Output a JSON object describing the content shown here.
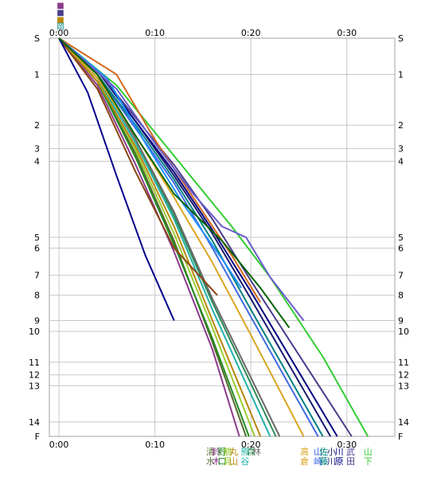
{
  "chart_data": {
    "type": "line",
    "title": "",
    "xlabel": "",
    "ylabel": "",
    "x_ticks": [
      {
        "value": 0,
        "label": "0:00"
      },
      {
        "value": 10,
        "label": "0:10"
      },
      {
        "value": 20,
        "label": "0:20"
      },
      {
        "value": 30,
        "label": "0:30"
      }
    ],
    "xlim": [
      -1,
      35
    ],
    "y_ticks": [
      {
        "value": 0,
        "label": "S"
      },
      {
        "value": 1,
        "label": "1"
      },
      {
        "value": 2,
        "label": "2"
      },
      {
        "value": 3,
        "label": "3"
      },
      {
        "value": 4,
        "label": "4"
      },
      {
        "value": 5,
        "label": "5"
      },
      {
        "value": 6,
        "label": "6"
      },
      {
        "value": 7,
        "label": "7"
      },
      {
        "value": 8,
        "label": "8"
      },
      {
        "value": 9,
        "label": "9"
      },
      {
        "value": 10,
        "label": "10"
      },
      {
        "value": 11,
        "label": "11"
      },
      {
        "value": 12,
        "label": "12"
      },
      {
        "value": 13,
        "label": "13"
      },
      {
        "value": 14,
        "label": "14"
      },
      {
        "value": 15,
        "label": "F"
      }
    ],
    "y_positions": [
      0,
      1,
      2.4,
      3.05,
      3.4,
      5.5,
      5.8,
      6.55,
      7.1,
      7.8,
      8.1,
      8.95,
      9.3,
      9.6,
      10.6,
      11.0
    ],
    "grid": true,
    "series": [
      {
        "name": "清水",
        "color": "#556b2f",
        "x": [
          0,
          4,
          8,
          12,
          16,
          19.5
        ],
        "y": [
          0,
          1.2,
          3.2,
          5.6,
          8.4,
          11.0
        ]
      },
      {
        "name": "鈴木",
        "color": "#8b3a8b",
        "x": [
          0,
          4,
          8,
          12,
          16,
          18.8
        ],
        "y": [
          0,
          1.3,
          3.5,
          5.9,
          8.6,
          11.0
        ]
      },
      {
        "name": "野口",
        "color": "#228b22",
        "x": [
          0,
          4,
          8,
          12,
          16,
          19.8
        ],
        "y": [
          0,
          1.2,
          3.3,
          5.7,
          8.3,
          11.0
        ]
      },
      {
        "name": "鶴見",
        "color": "#9acd32",
        "x": [
          0,
          4,
          8,
          12,
          16,
          20.4
        ],
        "y": [
          0,
          1.1,
          3.1,
          5.4,
          8.0,
          11.0
        ]
      },
      {
        "name": "丸山",
        "color": "#b8860b",
        "x": [
          0,
          4,
          8,
          12,
          16,
          21.0
        ],
        "y": [
          0,
          1.2,
          3.0,
          5.2,
          7.8,
          11.0
        ]
      },
      {
        "name": "熊谷",
        "color": "#20b2aa",
        "x": [
          0,
          4,
          8,
          12,
          16,
          22.0
        ],
        "y": [
          0,
          1.1,
          2.9,
          5.0,
          7.5,
          11.0
        ]
      },
      {
        "name": "森",
        "color": "#2e8b57",
        "x": [
          0,
          4,
          8,
          12,
          16,
          22.6
        ],
        "y": [
          0,
          1.0,
          2.8,
          4.9,
          7.3,
          11.0
        ]
      },
      {
        "name": "林",
        "color": "#696969",
        "x": [
          0,
          4,
          8,
          12,
          16,
          23.0
        ],
        "y": [
          0,
          1.0,
          2.8,
          4.8,
          7.2,
          11.0
        ]
      },
      {
        "name": "高倉",
        "color": "#daa520",
        "x": [
          0,
          4,
          8,
          12,
          16,
          20,
          25.5
        ],
        "y": [
          0,
          1.1,
          2.7,
          4.4,
          6.2,
          8.2,
          11.0
        ]
      },
      {
        "name": "山崎",
        "color": "#4169e1",
        "x": [
          0,
          4,
          8,
          12,
          16,
          20,
          27.0
        ],
        "y": [
          0,
          1.0,
          2.5,
          4.0,
          5.8,
          7.7,
          11.0
        ]
      },
      {
        "name": "佐藤",
        "color": "#008080",
        "x": [
          0,
          4,
          8,
          12,
          16,
          20,
          27.5
        ],
        "y": [
          0,
          1.0,
          2.4,
          3.9,
          5.6,
          7.5,
          11.0
        ]
      },
      {
        "name": "小川",
        "color": "#191970",
        "x": [
          0,
          4,
          8,
          12,
          16,
          20,
          28.3
        ],
        "y": [
          0,
          0.9,
          2.3,
          3.8,
          5.4,
          7.2,
          11.0
        ]
      },
      {
        "name": "川原",
        "color": "#000080",
        "x": [
          0,
          4,
          8,
          12,
          16,
          20,
          29.0
        ],
        "y": [
          0,
          0.9,
          2.3,
          3.7,
          5.3,
          7.0,
          11.0
        ]
      },
      {
        "name": "武田",
        "color": "#483d8b",
        "x": [
          0,
          4,
          8,
          12,
          16,
          20,
          30.5
        ],
        "y": [
          0,
          0.9,
          2.2,
          3.5,
          5.0,
          6.7,
          11.0
        ]
      },
      {
        "name": "山下",
        "color": "#32cd32",
        "x": [
          0,
          6,
          10,
          14,
          18,
          22,
          27.5,
          32.2
        ],
        "y": [
          0,
          1.3,
          2.6,
          3.9,
          5.2,
          6.6,
          8.8,
          11.0
        ]
      },
      {
        "name": "",
        "color": "#d2691e",
        "x": [
          0,
          6,
          10,
          14,
          18,
          21
        ],
        "y": [
          0,
          1.0,
          2.8,
          4.4,
          6.0,
          7.3
        ]
      },
      {
        "name": "",
        "color": "#1e90ff",
        "x": [
          0,
          5,
          9,
          13,
          17,
          19
        ],
        "y": [
          0,
          1.1,
          2.9,
          4.6,
          6.1,
          6.9
        ]
      },
      {
        "name": "",
        "color": "#6a5acd",
        "x": [
          0,
          6,
          10,
          14,
          17,
          19.5,
          22,
          25.5
        ],
        "y": [
          0,
          1.4,
          2.9,
          4.3,
          5.2,
          5.5,
          6.6,
          7.8
        ]
      },
      {
        "name": "",
        "color": "#8b4513",
        "x": [
          0,
          4,
          8,
          12,
          16.5
        ],
        "y": [
          0,
          1.4,
          3.7,
          5.8,
          7.1
        ]
      },
      {
        "name": "",
        "color": "#00008b",
        "x": [
          0,
          3,
          6,
          9,
          12
        ],
        "y": [
          0,
          1.5,
          3.8,
          6.0,
          7.8
        ]
      },
      {
        "name": "",
        "color": "#006400",
        "x": [
          0,
          4,
          8,
          12,
          17,
          21,
          24
        ],
        "y": [
          0,
          1.0,
          2.7,
          4.3,
          5.6,
          6.9,
          8.0
        ]
      }
    ],
    "legend": "bottom",
    "legend_columns": [
      {
        "x": 15.8,
        "text": "清水",
        "color": "#556b2f"
      },
      {
        "x": 16.4,
        "text": "鈴木",
        "color": "#8b3a8b"
      },
      {
        "x": 17.0,
        "text": "野口",
        "color": "#228b22"
      },
      {
        "x": 17.6,
        "text": "鶴見",
        "color": "#9acd32"
      },
      {
        "x": 18.2,
        "text": "丸山",
        "color": "#b8860b"
      },
      {
        "x": 19.4,
        "text": "熊谷",
        "color": "#20b2aa"
      },
      {
        "x": 20.0,
        "text": "森",
        "color": "#2e8b57"
      },
      {
        "x": 20.6,
        "text": "林",
        "color": "#696969"
      },
      {
        "x": 25.6,
        "text": "高倉",
        "color": "#daa520"
      },
      {
        "x": 27.0,
        "text": "山崎",
        "color": "#4169e1"
      },
      {
        "x": 27.6,
        "text": "佐藤",
        "color": "#008080"
      },
      {
        "x": 28.4,
        "text": "小川",
        "color": "#191970"
      },
      {
        "x": 29.2,
        "text": "川原",
        "color": "#000080"
      },
      {
        "x": 30.4,
        "text": "武田",
        "color": "#483d8b"
      },
      {
        "x": 32.2,
        "text": "山下",
        "color": "#32cd32"
      }
    ],
    "top_legend": [
      {
        "text": "■",
        "color": "#8b3a8b"
      },
      {
        "text": "■",
        "color": "#483d8b"
      },
      {
        "text": "■",
        "color": "#b8860b"
      },
      {
        "text": "岡",
        "color": "#008080"
      }
    ]
  }
}
